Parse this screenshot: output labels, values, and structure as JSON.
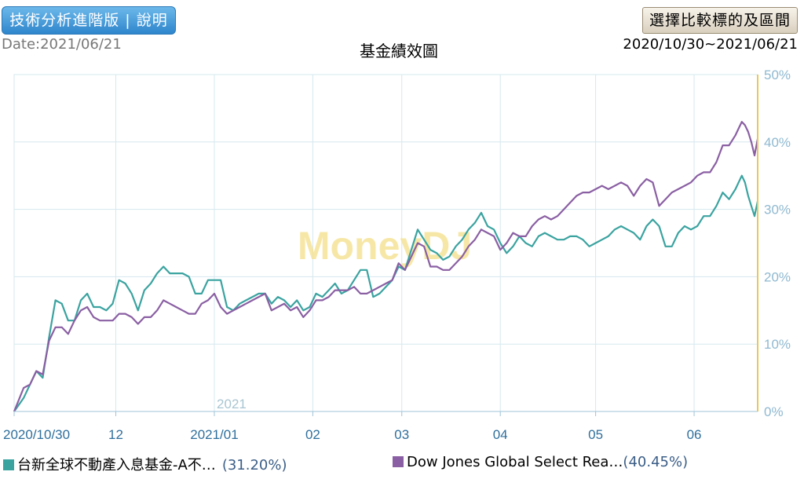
{
  "header": {
    "tech_button_label": "技術分析進階版 | 說明",
    "date_label": "Date:2021/06/21",
    "chart_title": "基金績效圖",
    "compare_button_label": "選擇比較標的及區間",
    "range_label": "2020/10/30~2021/06/21"
  },
  "watermark": "MoneyDJ",
  "legend": [
    {
      "name": "台新全球不動產入息基金-A不…",
      "value": "(31.20%)",
      "color": "#3aa3a0"
    },
    {
      "name": "Dow Jones Global Select Rea…",
      "value": "(40.45%)",
      "color": "#8a5fa3"
    }
  ],
  "chart_data": {
    "type": "line",
    "title": "基金績效圖",
    "ylim": [
      0,
      50
    ],
    "y_ticks": [
      0,
      10,
      20,
      30,
      40,
      50
    ],
    "y_tick_labels": [
      "0%",
      "10%",
      "20%",
      "30%",
      "40%",
      "50%"
    ],
    "x_range": [
      "2020-10-30",
      "2021-06-21"
    ],
    "x_ticks": [
      {
        "date": "2020-10-30",
        "label": "2020/10/30"
      },
      {
        "date": "2020-12-01",
        "label": "12"
      },
      {
        "date": "2021-01-01",
        "label": "2021/01"
      },
      {
        "date": "2021-02-01",
        "label": "02"
      },
      {
        "date": "2021-03-01",
        "label": "03"
      },
      {
        "date": "2021-04-01",
        "label": "04"
      },
      {
        "date": "2021-05-01",
        "label": "05"
      },
      {
        "date": "2021-06-01",
        "label": "06"
      }
    ],
    "year_annotation": {
      "date": "2021-01-01",
      "label": "2021"
    },
    "series": [
      {
        "name": "台新全球不動產入息基金-A不…",
        "color": "#3aa3a0",
        "values": [
          [
            "2020-10-30",
            0
          ],
          [
            "2020-11-02",
            2
          ],
          [
            "2020-11-04",
            4
          ],
          [
            "2020-11-06",
            6
          ],
          [
            "2020-11-08",
            5
          ],
          [
            "2020-11-10",
            11
          ],
          [
            "2020-11-12",
            16.5
          ],
          [
            "2020-11-14",
            16
          ],
          [
            "2020-11-16",
            13.5
          ],
          [
            "2020-11-18",
            13.5
          ],
          [
            "2020-11-20",
            16.5
          ],
          [
            "2020-11-22",
            17.5
          ],
          [
            "2020-11-24",
            15.5
          ],
          [
            "2020-11-26",
            15.5
          ],
          [
            "2020-11-28",
            15
          ],
          [
            "2020-11-30",
            16
          ],
          [
            "2020-12-02",
            19.5
          ],
          [
            "2020-12-04",
            19
          ],
          [
            "2020-12-06",
            17.5
          ],
          [
            "2020-12-08",
            15
          ],
          [
            "2020-12-10",
            18
          ],
          [
            "2020-12-12",
            19
          ],
          [
            "2020-12-14",
            20.5
          ],
          [
            "2020-12-16",
            21.5
          ],
          [
            "2020-12-18",
            20.5
          ],
          [
            "2020-12-20",
            20.5
          ],
          [
            "2020-12-22",
            20.5
          ],
          [
            "2020-12-24",
            20
          ],
          [
            "2020-12-26",
            17.5
          ],
          [
            "2020-12-28",
            17.5
          ],
          [
            "2020-12-30",
            19.5
          ],
          [
            "2021-01-01",
            19.5
          ],
          [
            "2021-01-03",
            19.5
          ],
          [
            "2021-01-05",
            15.5
          ],
          [
            "2021-01-07",
            15
          ],
          [
            "2021-01-09",
            16
          ],
          [
            "2021-01-11",
            16.5
          ],
          [
            "2021-01-13",
            17
          ],
          [
            "2021-01-15",
            17.5
          ],
          [
            "2021-01-17",
            17.5
          ],
          [
            "2021-01-19",
            16
          ],
          [
            "2021-01-21",
            17
          ],
          [
            "2021-01-23",
            16.5
          ],
          [
            "2021-01-25",
            15.5
          ],
          [
            "2021-01-27",
            16.5
          ],
          [
            "2021-01-29",
            15
          ],
          [
            "2021-01-31",
            15.5
          ],
          [
            "2021-02-02",
            17.5
          ],
          [
            "2021-02-04",
            17
          ],
          [
            "2021-02-06",
            18
          ],
          [
            "2021-02-08",
            19
          ],
          [
            "2021-02-10",
            17.5
          ],
          [
            "2021-02-12",
            18
          ],
          [
            "2021-02-14",
            19.5
          ],
          [
            "2021-02-16",
            21
          ],
          [
            "2021-02-18",
            21
          ],
          [
            "2021-02-20",
            17
          ],
          [
            "2021-02-22",
            17.5
          ],
          [
            "2021-02-24",
            18.5
          ],
          [
            "2021-02-26",
            19.5
          ],
          [
            "2021-02-28",
            21.5
          ],
          [
            "2021-03-02",
            21
          ],
          [
            "2021-03-04",
            24
          ],
          [
            "2021-03-06",
            27
          ],
          [
            "2021-03-08",
            25.5
          ],
          [
            "2021-03-10",
            24
          ],
          [
            "2021-03-12",
            23.5
          ],
          [
            "2021-03-14",
            22.5
          ],
          [
            "2021-03-16",
            23
          ],
          [
            "2021-03-18",
            24.5
          ],
          [
            "2021-03-20",
            25.5
          ],
          [
            "2021-03-22",
            27
          ],
          [
            "2021-03-24",
            28
          ],
          [
            "2021-03-26",
            29.5
          ],
          [
            "2021-03-28",
            27.5
          ],
          [
            "2021-03-30",
            27
          ],
          [
            "2021-04-01",
            25
          ],
          [
            "2021-04-03",
            23.5
          ],
          [
            "2021-04-05",
            24.5
          ],
          [
            "2021-04-07",
            26
          ],
          [
            "2021-04-09",
            25
          ],
          [
            "2021-04-11",
            24.5
          ],
          [
            "2021-04-13",
            26
          ],
          [
            "2021-04-15",
            26.5
          ],
          [
            "2021-04-17",
            26
          ],
          [
            "2021-04-19",
            25.5
          ],
          [
            "2021-04-21",
            25.5
          ],
          [
            "2021-04-23",
            26
          ],
          [
            "2021-04-25",
            26
          ],
          [
            "2021-04-27",
            25.5
          ],
          [
            "2021-04-29",
            24.5
          ],
          [
            "2021-05-01",
            25
          ],
          [
            "2021-05-03",
            25.5
          ],
          [
            "2021-05-05",
            26
          ],
          [
            "2021-05-07",
            27
          ],
          [
            "2021-05-09",
            27.5
          ],
          [
            "2021-05-11",
            27
          ],
          [
            "2021-05-13",
            26.5
          ],
          [
            "2021-05-15",
            25.5
          ],
          [
            "2021-05-17",
            27.5
          ],
          [
            "2021-05-19",
            28.5
          ],
          [
            "2021-05-21",
            27.5
          ],
          [
            "2021-05-23",
            24.5
          ],
          [
            "2021-05-25",
            24.5
          ],
          [
            "2021-05-27",
            26.5
          ],
          [
            "2021-05-29",
            27.5
          ],
          [
            "2021-05-31",
            27
          ],
          [
            "2021-06-02",
            27.5
          ],
          [
            "2021-06-04",
            29
          ],
          [
            "2021-06-06",
            29
          ],
          [
            "2021-06-08",
            30.5
          ],
          [
            "2021-06-10",
            32.5
          ],
          [
            "2021-06-12",
            31.5
          ],
          [
            "2021-06-14",
            33
          ],
          [
            "2021-06-15",
            34
          ],
          [
            "2021-06-16",
            35
          ],
          [
            "2021-06-17",
            34
          ],
          [
            "2021-06-18",
            32
          ],
          [
            "2021-06-19",
            30.5
          ],
          [
            "2021-06-20",
            29
          ],
          [
            "2021-06-21",
            31.2
          ]
        ]
      },
      {
        "name": "Dow Jones Global Select Rea…",
        "color": "#8a5fa3",
        "values": [
          [
            "2020-10-30",
            0
          ],
          [
            "2020-11-02",
            3.5
          ],
          [
            "2020-11-04",
            4
          ],
          [
            "2020-11-06",
            6
          ],
          [
            "2020-11-08",
            5.5
          ],
          [
            "2020-11-10",
            10.5
          ],
          [
            "2020-11-12",
            12.5
          ],
          [
            "2020-11-14",
            12.5
          ],
          [
            "2020-11-16",
            11.5
          ],
          [
            "2020-11-18",
            13.5
          ],
          [
            "2020-11-20",
            15
          ],
          [
            "2020-11-22",
            15.5
          ],
          [
            "2020-11-24",
            14
          ],
          [
            "2020-11-26",
            13.5
          ],
          [
            "2020-11-28",
            13.5
          ],
          [
            "2020-11-30",
            13.5
          ],
          [
            "2020-12-02",
            14.5
          ],
          [
            "2020-12-04",
            14.5
          ],
          [
            "2020-12-06",
            14
          ],
          [
            "2020-12-08",
            13
          ],
          [
            "2020-12-10",
            14
          ],
          [
            "2020-12-12",
            14
          ],
          [
            "2020-12-14",
            15
          ],
          [
            "2020-12-16",
            16.5
          ],
          [
            "2020-12-18",
            16
          ],
          [
            "2020-12-20",
            15.5
          ],
          [
            "2020-12-22",
            15
          ],
          [
            "2020-12-24",
            14.5
          ],
          [
            "2020-12-26",
            14.5
          ],
          [
            "2020-12-28",
            16
          ],
          [
            "2020-12-30",
            16.5
          ],
          [
            "2021-01-01",
            17.5
          ],
          [
            "2021-01-03",
            15.5
          ],
          [
            "2021-01-05",
            14.5
          ],
          [
            "2021-01-07",
            15
          ],
          [
            "2021-01-09",
            15.5
          ],
          [
            "2021-01-11",
            16
          ],
          [
            "2021-01-13",
            16.5
          ],
          [
            "2021-01-15",
            17
          ],
          [
            "2021-01-17",
            17.5
          ],
          [
            "2021-01-19",
            15
          ],
          [
            "2021-01-21",
            15.5
          ],
          [
            "2021-01-23",
            16
          ],
          [
            "2021-01-25",
            15
          ],
          [
            "2021-01-27",
            15.5
          ],
          [
            "2021-01-29",
            14
          ],
          [
            "2021-01-31",
            15
          ],
          [
            "2021-02-02",
            16.5
          ],
          [
            "2021-02-04",
            16.5
          ],
          [
            "2021-02-06",
            17
          ],
          [
            "2021-02-08",
            18
          ],
          [
            "2021-02-10",
            18
          ],
          [
            "2021-02-12",
            18
          ],
          [
            "2021-02-14",
            18.5
          ],
          [
            "2021-02-16",
            17.5
          ],
          [
            "2021-02-18",
            17.5
          ],
          [
            "2021-02-20",
            18
          ],
          [
            "2021-02-22",
            18.5
          ],
          [
            "2021-02-24",
            19
          ],
          [
            "2021-02-26",
            19.5
          ],
          [
            "2021-02-28",
            22
          ],
          [
            "2021-03-02",
            21
          ],
          [
            "2021-03-04",
            23
          ],
          [
            "2021-03-06",
            25
          ],
          [
            "2021-03-08",
            24.5
          ],
          [
            "2021-03-10",
            21.5
          ],
          [
            "2021-03-12",
            21.5
          ],
          [
            "2021-03-14",
            21
          ],
          [
            "2021-03-16",
            21
          ],
          [
            "2021-03-18",
            22
          ],
          [
            "2021-03-20",
            23
          ],
          [
            "2021-03-22",
            24.5
          ],
          [
            "2021-03-24",
            25.5
          ],
          [
            "2021-03-26",
            27
          ],
          [
            "2021-03-28",
            26.5
          ],
          [
            "2021-03-30",
            26
          ],
          [
            "2021-04-01",
            24
          ],
          [
            "2021-04-03",
            25
          ],
          [
            "2021-04-05",
            26.5
          ],
          [
            "2021-04-07",
            26
          ],
          [
            "2021-04-09",
            26
          ],
          [
            "2021-04-11",
            27.5
          ],
          [
            "2021-04-13",
            28.5
          ],
          [
            "2021-04-15",
            29
          ],
          [
            "2021-04-17",
            28.5
          ],
          [
            "2021-04-19",
            29
          ],
          [
            "2021-04-21",
            30
          ],
          [
            "2021-04-23",
            31
          ],
          [
            "2021-04-25",
            32
          ],
          [
            "2021-04-27",
            32.5
          ],
          [
            "2021-04-29",
            32.5
          ],
          [
            "2021-05-01",
            33
          ],
          [
            "2021-05-03",
            33.5
          ],
          [
            "2021-05-05",
            33
          ],
          [
            "2021-05-07",
            33.5
          ],
          [
            "2021-05-09",
            34
          ],
          [
            "2021-05-11",
            33.5
          ],
          [
            "2021-05-13",
            32
          ],
          [
            "2021-05-15",
            33.5
          ],
          [
            "2021-05-17",
            34.5
          ],
          [
            "2021-05-19",
            34
          ],
          [
            "2021-05-21",
            30.5
          ],
          [
            "2021-05-23",
            31.5
          ],
          [
            "2021-05-25",
            32.5
          ],
          [
            "2021-05-27",
            33
          ],
          [
            "2021-05-29",
            33.5
          ],
          [
            "2021-05-31",
            34
          ],
          [
            "2021-06-02",
            35
          ],
          [
            "2021-06-04",
            35.5
          ],
          [
            "2021-06-06",
            35.5
          ],
          [
            "2021-06-08",
            37
          ],
          [
            "2021-06-10",
            39.5
          ],
          [
            "2021-06-12",
            39.5
          ],
          [
            "2021-06-14",
            41
          ],
          [
            "2021-06-15",
            42
          ],
          [
            "2021-06-16",
            43
          ],
          [
            "2021-06-17",
            42.5
          ],
          [
            "2021-06-18",
            41.5
          ],
          [
            "2021-06-19",
            40
          ],
          [
            "2021-06-20",
            38
          ],
          [
            "2021-06-21",
            40.45
          ]
        ]
      }
    ]
  }
}
